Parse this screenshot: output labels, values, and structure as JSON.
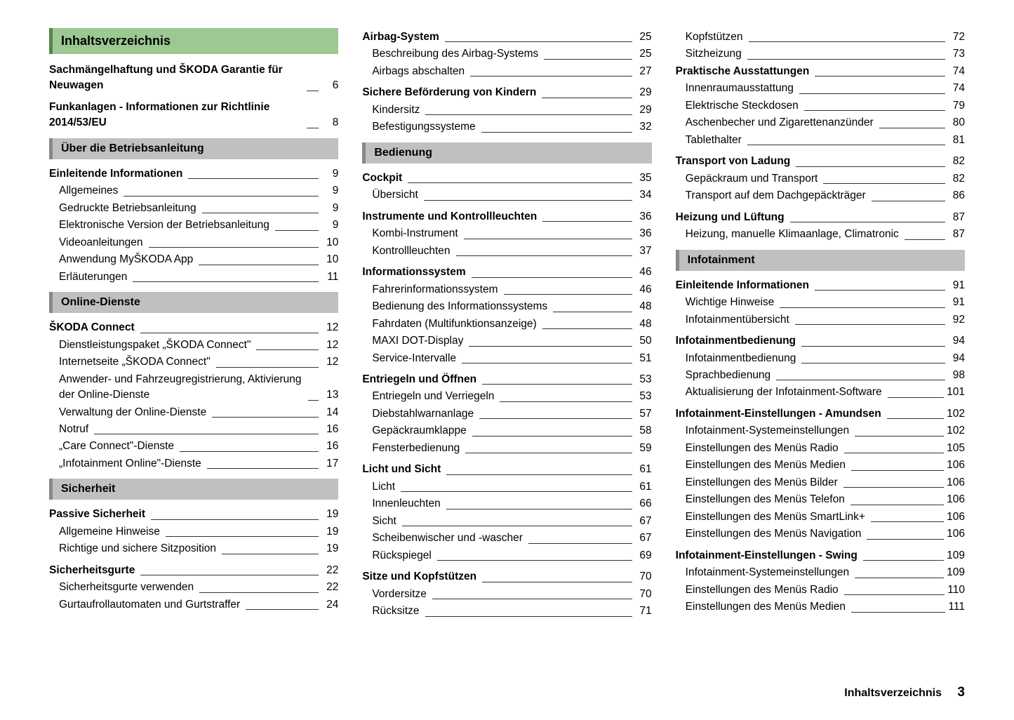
{
  "colors": {
    "green_bg": "#9cc891",
    "green_border": "#5a8251",
    "gray_bg": "#c2bfc0",
    "gray_border": "#8a8788"
  },
  "main_title": "Inhaltsverzeichnis",
  "footer": {
    "label": "Inhaltsverzeichnis",
    "page": "3"
  },
  "col1": [
    {
      "type": "green",
      "text": "Inhaltsverzeichnis"
    },
    {
      "type": "bold",
      "label": "Sachmängelhaftung und ŠKODA Garantie für Neuwagen",
      "page": "6"
    },
    {
      "type": "bold",
      "label": "Funkanlagen - Informationen zur Richtlinie 2014/53/EU",
      "page": "8"
    },
    {
      "type": "gray",
      "text": "Über die Betriebsanleitung"
    },
    {
      "type": "bold",
      "label": "Einleitende Informationen",
      "page": "9"
    },
    {
      "type": "sub",
      "label": "Allgemeines",
      "page": "9"
    },
    {
      "type": "sub",
      "label": "Gedruckte Betriebsanleitung",
      "page": "9"
    },
    {
      "type": "sub",
      "label": "Elektronische Version der Betriebsanleitung",
      "page": "9"
    },
    {
      "type": "sub",
      "label": "Videoanleitungen",
      "page": "10"
    },
    {
      "type": "sub",
      "label": "Anwendung MyŠKODA App",
      "page": "10"
    },
    {
      "type": "sub",
      "label": "Erläuterungen",
      "page": "11"
    },
    {
      "type": "gray",
      "text": "Online-Dienste"
    },
    {
      "type": "bold",
      "label": "ŠKODA Connect",
      "page": "12"
    },
    {
      "type": "sub",
      "label": "Dienstleistungspaket „ŠKODA Connect\"",
      "page": "12"
    },
    {
      "type": "sub",
      "label": "Internetseite „ŠKODA Connect\"",
      "page": "12"
    },
    {
      "type": "sub",
      "label": "Anwender- und Fahrzeugregistrierung, Aktivierung der Online-Dienste",
      "page": "13"
    },
    {
      "type": "sub",
      "label": "Verwaltung der Online-Dienste",
      "page": "14"
    },
    {
      "type": "sub",
      "label": "Notruf",
      "page": "16"
    },
    {
      "type": "sub",
      "label": "„Care Connect\"-Dienste",
      "page": "16"
    },
    {
      "type": "sub",
      "label": "„Infotainment Online\"-Dienste",
      "page": "17"
    },
    {
      "type": "gray",
      "text": "Sicherheit"
    },
    {
      "type": "bold",
      "label": "Passive Sicherheit",
      "page": "19"
    },
    {
      "type": "sub",
      "label": "Allgemeine Hinweise",
      "page": "19"
    },
    {
      "type": "sub",
      "label": "Richtige und sichere Sitzposition",
      "page": "19"
    },
    {
      "type": "bold",
      "label": "Sicherheitsgurte",
      "page": "22"
    },
    {
      "type": "sub",
      "label": "Sicherheitsgurte verwenden",
      "page": "22"
    },
    {
      "type": "sub",
      "label": "Gurtaufrollautomaten und Gurtstraffer",
      "page": "24"
    }
  ],
  "col2": [
    {
      "type": "bold",
      "label": "Airbag-System",
      "page": "25"
    },
    {
      "type": "sub",
      "label": "Beschreibung des Airbag-Systems",
      "page": "25"
    },
    {
      "type": "sub",
      "label": "Airbags abschalten",
      "page": "27"
    },
    {
      "type": "bold",
      "label": "Sichere Beförderung von Kindern",
      "page": "29"
    },
    {
      "type": "sub",
      "label": "Kindersitz",
      "page": "29"
    },
    {
      "type": "sub",
      "label": "Befestigungssysteme",
      "page": "32"
    },
    {
      "type": "gray",
      "text": "Bedienung"
    },
    {
      "type": "bold",
      "label": "Cockpit",
      "page": "35"
    },
    {
      "type": "sub",
      "label": "Übersicht",
      "page": "34"
    },
    {
      "type": "bold",
      "label": "Instrumente und Kontrollleuchten",
      "page": "36"
    },
    {
      "type": "sub",
      "label": "Kombi-Instrument",
      "page": "36"
    },
    {
      "type": "sub",
      "label": "Kontrollleuchten",
      "page": "37"
    },
    {
      "type": "bold",
      "label": "Informationssystem",
      "page": "46"
    },
    {
      "type": "sub",
      "label": "Fahrerinformationssystem",
      "page": "46"
    },
    {
      "type": "sub",
      "label": "Bedienung des Informationssystems",
      "page": "48"
    },
    {
      "type": "sub",
      "label": "Fahrdaten (Multifunktionsanzeige)",
      "page": "48"
    },
    {
      "type": "sub",
      "label": "MAXI DOT-Display",
      "page": "50"
    },
    {
      "type": "sub",
      "label": "Service-Intervalle",
      "page": "51"
    },
    {
      "type": "bold",
      "label": "Entriegeln und Öffnen",
      "page": "53"
    },
    {
      "type": "sub",
      "label": "Entriegeln und Verriegeln",
      "page": "53"
    },
    {
      "type": "sub",
      "label": "Diebstahlwarnanlage",
      "page": "57"
    },
    {
      "type": "sub",
      "label": "Gepäckraumklappe",
      "page": "58"
    },
    {
      "type": "sub",
      "label": "Fensterbedienung",
      "page": "59"
    },
    {
      "type": "bold",
      "label": "Licht und Sicht",
      "page": "61"
    },
    {
      "type": "sub",
      "label": "Licht",
      "page": "61"
    },
    {
      "type": "sub",
      "label": "Innenleuchten",
      "page": "66"
    },
    {
      "type": "sub",
      "label": "Sicht",
      "page": "67"
    },
    {
      "type": "sub",
      "label": "Scheibenwischer und -wascher",
      "page": "67"
    },
    {
      "type": "sub",
      "label": "Rückspiegel",
      "page": "69"
    },
    {
      "type": "bold",
      "label": "Sitze und Kopfstützen",
      "page": "70"
    },
    {
      "type": "sub",
      "label": "Vordersitze",
      "page": "70"
    },
    {
      "type": "sub",
      "label": "Rücksitze",
      "page": "71"
    }
  ],
  "col3": [
    {
      "type": "sub",
      "label": "Kopfstützen",
      "page": "72"
    },
    {
      "type": "sub",
      "label": "Sitzheizung",
      "page": "73"
    },
    {
      "type": "bold",
      "label": "Praktische Ausstattungen",
      "page": "74"
    },
    {
      "type": "sub",
      "label": "Innenraumausstattung",
      "page": "74"
    },
    {
      "type": "sub",
      "label": "Elektrische Steckdosen",
      "page": "79"
    },
    {
      "type": "sub",
      "label": "Aschenbecher und Zigarettenanzünder",
      "page": "80"
    },
    {
      "type": "sub",
      "label": "Tablethalter",
      "page": "81"
    },
    {
      "type": "bold",
      "label": "Transport von Ladung",
      "page": "82"
    },
    {
      "type": "sub",
      "label": "Gepäckraum und Transport",
      "page": "82"
    },
    {
      "type": "sub",
      "label": "Transport auf dem Dachgepäckträger",
      "page": "86"
    },
    {
      "type": "bold",
      "label": "Heizung und Lüftung",
      "page": "87"
    },
    {
      "type": "sub",
      "label": "Heizung, manuelle Klimaanlage, Climatronic",
      "page": "87"
    },
    {
      "type": "gray",
      "text": "Infotainment"
    },
    {
      "type": "bold",
      "label": "Einleitende Informationen",
      "page": "91"
    },
    {
      "type": "sub",
      "label": "Wichtige Hinweise",
      "page": "91"
    },
    {
      "type": "sub",
      "label": "Infotainmentübersicht",
      "page": "92"
    },
    {
      "type": "bold",
      "label": "Infotainmentbedienung",
      "page": "94"
    },
    {
      "type": "sub",
      "label": "Infotainmentbedienung",
      "page": "94"
    },
    {
      "type": "sub",
      "label": "Sprachbedienung",
      "page": "98"
    },
    {
      "type": "sub",
      "label": "Aktualisierung der Infotainment-Software",
      "page": "101"
    },
    {
      "type": "bold",
      "label": "Infotainment-Einstellungen - Amundsen",
      "page": "102"
    },
    {
      "type": "sub",
      "label": "Infotainment-Systemeinstellungen",
      "page": "102"
    },
    {
      "type": "sub",
      "label": "Einstellungen des Menüs Radio",
      "page": "105"
    },
    {
      "type": "sub",
      "label": "Einstellungen des Menüs Medien",
      "page": "106"
    },
    {
      "type": "sub",
      "label": "Einstellungen des Menüs Bilder",
      "page": "106"
    },
    {
      "type": "sub",
      "label": "Einstellungen des Menüs Telefon",
      "page": "106"
    },
    {
      "type": "sub",
      "label": "Einstellungen des Menüs SmartLink+",
      "page": "106"
    },
    {
      "type": "sub",
      "label": "Einstellungen des Menüs Navigation",
      "page": "106"
    },
    {
      "type": "bold",
      "label": "Infotainment-Einstellungen - Swing",
      "page": "109"
    },
    {
      "type": "sub",
      "label": "Infotainment-Systemeinstellungen",
      "page": "109"
    },
    {
      "type": "sub",
      "label": "Einstellungen des Menüs Radio",
      "page": "110"
    },
    {
      "type": "sub",
      "label": "Einstellungen des Menüs Medien",
      "page": "111"
    }
  ]
}
